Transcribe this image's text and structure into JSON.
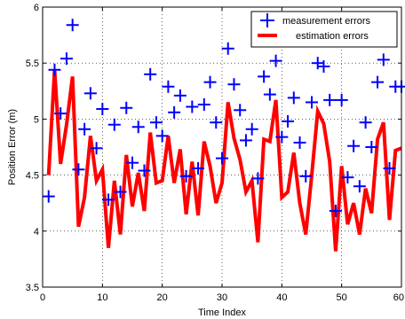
{
  "chart_data": {
    "type": "line",
    "xlabel": "Time Index",
    "ylabel": "Position Error (m)",
    "xlim": [
      0,
      60
    ],
    "ylim": [
      3.5,
      6
    ],
    "x_ticks": [
      "0",
      "10",
      "20",
      "30",
      "40",
      "50",
      "60"
    ],
    "y_ticks": [
      "3.5",
      "4",
      "4.5",
      "5",
      "5.5",
      "6"
    ],
    "grid": true,
    "legend_position": "top-right",
    "series": [
      {
        "name": "measurement errors",
        "style": "markers",
        "marker": "plus",
        "color": "#0000ff",
        "x": [
          1,
          2,
          3,
          4,
          5,
          6,
          7,
          8,
          9,
          10,
          11,
          12,
          13,
          14,
          15,
          16,
          17,
          18,
          19,
          20,
          21,
          22,
          23,
          24,
          25,
          26,
          27,
          28,
          29,
          30,
          31,
          32,
          33,
          34,
          35,
          36,
          37,
          38,
          39,
          40,
          41,
          42,
          43,
          44,
          45,
          46,
          47,
          48,
          49,
          50,
          51,
          52,
          53,
          54,
          55,
          56,
          57,
          58,
          59,
          60
        ],
        "y": [
          4.31,
          5.44,
          5.05,
          5.54,
          5.84,
          4.55,
          4.91,
          5.23,
          4.74,
          5.09,
          4.28,
          4.95,
          4.35,
          5.1,
          4.61,
          4.93,
          4.54,
          5.4,
          4.97,
          4.85,
          5.29,
          5.06,
          5.21,
          4.49,
          5.11,
          4.56,
          5.13,
          5.33,
          4.97,
          4.65,
          5.63,
          5.31,
          5.08,
          4.81,
          4.91,
          4.47,
          5.38,
          5.22,
          5.52,
          4.84,
          4.98,
          5.19,
          4.79,
          4.49,
          5.15,
          5.5,
          5.47,
          5.17,
          4.18,
          5.17,
          4.48,
          4.76,
          4.4,
          4.97,
          4.75,
          5.33,
          5.53,
          4.56,
          5.29,
          5.29
        ]
      },
      {
        "name": "estimation errors",
        "style": "line",
        "color": "#ff0000",
        "x": [
          1,
          2,
          3,
          4,
          5,
          6,
          7,
          8,
          9,
          10,
          11,
          12,
          13,
          14,
          15,
          16,
          17,
          18,
          19,
          20,
          21,
          22,
          23,
          24,
          25,
          26,
          27,
          28,
          29,
          30,
          31,
          32,
          33,
          34,
          35,
          36,
          37,
          38,
          39,
          40,
          41,
          42,
          43,
          44,
          45,
          46,
          47,
          48,
          49,
          50,
          51,
          52,
          53,
          54,
          55,
          56,
          57,
          58,
          59,
          60
        ],
        "y": [
          4.5,
          5.44,
          4.6,
          4.95,
          5.38,
          4.04,
          4.3,
          4.85,
          4.45,
          4.55,
          3.85,
          4.45,
          3.97,
          4.68,
          4.22,
          4.52,
          4.18,
          4.88,
          4.43,
          4.45,
          4.85,
          4.43,
          4.73,
          4.15,
          4.62,
          4.14,
          4.8,
          4.58,
          4.25,
          4.43,
          5.15,
          4.83,
          4.64,
          4.35,
          4.45,
          3.9,
          4.82,
          4.8,
          5.17,
          4.3,
          4.35,
          4.7,
          4.25,
          3.97,
          4.5,
          5.07,
          4.96,
          4.62,
          3.82,
          4.58,
          4.06,
          4.25,
          3.97,
          4.38,
          4.16,
          4.82,
          4.97,
          4.1,
          4.72,
          4.74
        ]
      }
    ]
  }
}
